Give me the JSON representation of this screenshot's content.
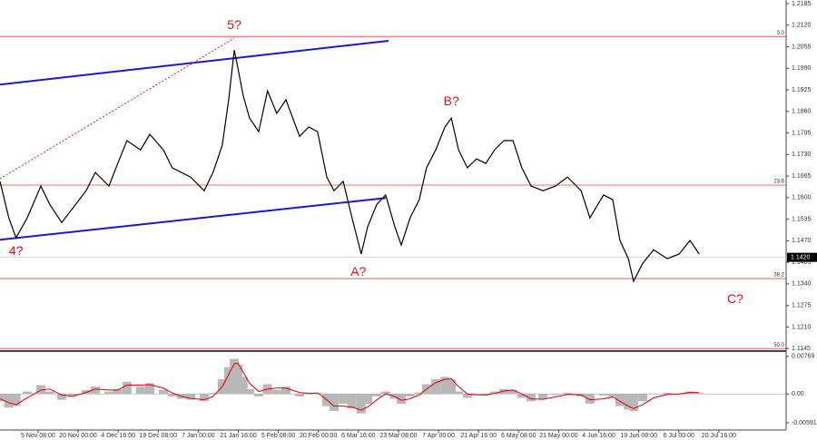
{
  "chart_data": [
    {
      "type": "price-line",
      "color": "#000000",
      "grid": false,
      "xlim": [
        0.05,
        19.68
      ],
      "ylim": [
        1.114,
        1.2196
      ],
      "xticks": [
        {
          "value": 1,
          "label": "5 Nov 08:00"
        },
        {
          "value": 2,
          "label": "20 Nov 00:00"
        },
        {
          "value": 3,
          "label": "4 Dec 16:00"
        },
        {
          "value": 4,
          "label": "19 Dec 08:00"
        },
        {
          "value": 5,
          "label": "7 Jan 00:00"
        },
        {
          "value": 6,
          "label": "21 Jan 16:00"
        },
        {
          "value": 7,
          "label": "5 Feb 08:00"
        },
        {
          "value": 8,
          "label": "20 Feb 00:00"
        },
        {
          "value": 9,
          "label": "6 Mar 16:00"
        },
        {
          "value": 10,
          "label": "23 Mar 08:00"
        },
        {
          "value": 11,
          "label": "7 Apr 00:00"
        },
        {
          "value": 12,
          "label": "21 Apr 16:00"
        },
        {
          "value": 13,
          "label": "6 May 08:00"
        },
        {
          "value": 14,
          "label": "21 May 00:00"
        },
        {
          "value": 15,
          "label": "4 Jun 16:00"
        },
        {
          "value": 16,
          "label": "19 Jun 08:00"
        },
        {
          "value": 17,
          "label": "6 Jul 00:00"
        },
        {
          "value": 18,
          "label": "20 Jul 16:00"
        }
      ],
      "yticks": [
        1.1145,
        {
          "value": 1.121,
          "label": "1.1210"
        },
        1.1275,
        {
          "value": 1.134,
          "label": "1.1340"
        },
        1.1405,
        {
          "value": 1.147,
          "label": "1.1470"
        },
        1.1535,
        {
          "value": 1.16,
          "label": "1.1600"
        },
        1.1665,
        {
          "value": 1.173,
          "label": "1.1730"
        },
        1.1795,
        {
          "value": 1.186,
          "label": "1.1860"
        },
        1.1925,
        {
          "value": 1.199,
          "label": "1.1990"
        },
        1.2055,
        {
          "value": 1.212,
          "label": "1.2120"
        },
        1.2185
      ],
      "x": [
        0.05,
        0.27,
        0.45,
        0.73,
        1.07,
        1.29,
        1.59,
        1.86,
        2.2,
        2.43,
        2.77,
        2.99,
        3.22,
        3.56,
        3.79,
        4.13,
        4.35,
        4.58,
        4.81,
        5.15,
        5.37,
        5.6,
        5.76,
        5.9,
        5.99,
        6.12,
        6.28,
        6.51,
        6.73,
        6.96,
        7.19,
        7.53,
        7.76,
        7.98,
        8.21,
        8.39,
        8.62,
        8.84,
        9.07,
        9.23,
        9.46,
        9.68,
        9.91,
        10.07,
        10.29,
        10.52,
        10.7,
        10.93,
        11.16,
        11.32,
        11.5,
        11.72,
        11.95,
        12.18,
        12.4,
        12.63,
        12.86,
        13.08,
        13.31,
        13.61,
        13.92,
        14.22,
        14.56,
        14.78,
        15.12,
        15.35,
        15.53,
        15.74,
        15.87,
        16.1,
        16.37,
        16.71,
        17.01,
        17.28,
        17.51
      ],
      "values": [
        1.1649,
        1.1539,
        1.1479,
        1.1539,
        1.1635,
        1.158,
        1.1525,
        1.1567,
        1.1621,
        1.1676,
        1.1635,
        1.1703,
        1.1772,
        1.1744,
        1.1791,
        1.1744,
        1.169,
        1.1676,
        1.1662,
        1.1621,
        1.1676,
        1.1758,
        1.1895,
        1.2045,
        1.1991,
        1.1909,
        1.184,
        1.1799,
        1.1922,
        1.1854,
        1.1895,
        1.1785,
        1.1813,
        1.1799,
        1.1662,
        1.1621,
        1.1649,
        1.1539,
        1.143,
        1.1512,
        1.158,
        1.1608,
        1.1512,
        1.1457,
        1.1539,
        1.1594,
        1.169,
        1.1744,
        1.1813,
        1.184,
        1.1744,
        1.169,
        1.1717,
        1.1703,
        1.1744,
        1.1772,
        1.1772,
        1.169,
        1.1635,
        1.1621,
        1.1635,
        1.1662,
        1.1621,
        1.1539,
        1.1608,
        1.1594,
        1.1471,
        1.1416,
        1.1348,
        1.1402,
        1.1443,
        1.1416,
        1.143,
        1.1471,
        1.143
      ],
      "levels": [
        {
          "value": 1.2086,
          "label": "0.0",
          "color": "#e04040"
        },
        {
          "value": 1.1638,
          "label": "23.6",
          "color": "#e04040"
        },
        {
          "value": 1.1356,
          "label": "38.2",
          "color": "#e04040"
        },
        {
          "value": 1.1145,
          "label": "50.0",
          "color": "#e04040"
        }
      ],
      "last_price": {
        "value": 1.142,
        "label": "1.1420"
      },
      "trendlines": [
        {
          "color": "#1a1acc",
          "style": "solid",
          "points": [
            [
              0.05,
              1.1941
            ],
            [
              9.75,
              1.2073
            ]
          ]
        },
        {
          "color": "#1a1acc",
          "style": "solid",
          "points": [
            [
              0.05,
              1.1473
            ],
            [
              9.68,
              1.1599
            ]
          ]
        },
        {
          "color": "#e02020",
          "style": "dotted",
          "points": [
            [
              0.05,
              1.1657
            ],
            [
              5.9,
              1.2081
            ]
          ]
        }
      ],
      "annotations": [
        {
          "text": "5?",
          "x": 5.9,
          "y": 1.2119
        },
        {
          "text": "4?",
          "x": 0.45,
          "y": 1.1438
        },
        {
          "text": "A?",
          "x": 9.0,
          "y": 1.1375
        },
        {
          "text": "B?",
          "x": 11.32,
          "y": 1.1889
        },
        {
          "text": "C?",
          "x": 18.41,
          "y": 1.1293
        }
      ],
      "annotation_color": "#e01010"
    },
    {
      "type": "oscillator",
      "xlim": [
        0.05,
        19.68
      ],
      "ylim": [
        -0.0074,
        0.0086
      ],
      "yticks": [
        0.00769,
        {
          "value": 0,
          "label": "0.00"
        },
        -0.00591
      ],
      "x": [
        0.05,
        0.27,
        0.45,
        0.73,
        1.07,
        1.29,
        1.59,
        1.86,
        2.2,
        2.43,
        2.77,
        2.99,
        3.22,
        3.56,
        3.79,
        4.13,
        4.35,
        4.58,
        4.81,
        5.15,
        5.37,
        5.6,
        5.76,
        5.9,
        5.99,
        6.12,
        6.28,
        6.51,
        6.73,
        6.96,
        7.19,
        7.53,
        7.76,
        7.98,
        8.21,
        8.39,
        8.62,
        8.84,
        9.07,
        9.23,
        9.46,
        9.68,
        9.91,
        10.07,
        10.29,
        10.52,
        10.7,
        10.93,
        11.16,
        11.32,
        11.5,
        11.72,
        11.95,
        12.18,
        12.4,
        12.63,
        12.86,
        13.08,
        13.31,
        13.61,
        13.92,
        14.22,
        14.56,
        14.78,
        15.12,
        15.35,
        15.53,
        15.74,
        15.87,
        16.1,
        16.37,
        16.71,
        17.01,
        17.28,
        17.51
      ],
      "series": [
        {
          "style": "histogram",
          "color": "#b8b8b8",
          "values": [
            -0.0015,
            -0.0028,
            -0.0025,
            0.0005,
            0.0018,
            0.0005,
            -0.0012,
            -0.0003,
            0.0008,
            0.0015,
            0.0005,
            0.001,
            0.0025,
            0.0015,
            0.0022,
            0.0008,
            -0.0005,
            -0.001,
            -0.0012,
            -0.0015,
            0.0002,
            0.003,
            0.0055,
            0.0072,
            0.006,
            0.0035,
            0.001,
            -0.0005,
            0.002,
            0.0008,
            0.0015,
            -0.0005,
            0.0003,
            0.0002,
            -0.0025,
            -0.0035,
            -0.002,
            -0.003,
            -0.004,
            -0.002,
            -0.0005,
            0.0005,
            -0.001,
            -0.002,
            -0.0005,
            0.0003,
            0.002,
            0.003,
            0.0035,
            0.003,
            0.0005,
            -0.0008,
            0,
            -0.0003,
            0.0005,
            0.001,
            0.0008,
            -0.0008,
            -0.0015,
            -0.001,
            -0.0002,
            0.0002,
            -0.0005,
            -0.002,
            -0.0003,
            -0.0005,
            -0.0025,
            -0.0032,
            -0.0035,
            -0.0015,
            0,
            0.0002,
            0,
            0.0005,
            0.0002
          ]
        },
        {
          "style": "line",
          "color": "#e00000",
          "values": [
            -0.001,
            -0.0018,
            -0.0022,
            -0.0008,
            0.0008,
            0.001,
            -0.0002,
            -0.0005,
            0.0003,
            0.001,
            0.0008,
            0.0008,
            0.0018,
            0.0018,
            0.0019,
            0.0012,
            0.0002,
            -0.0005,
            -0.0009,
            -0.0012,
            -0.0005,
            0.0015,
            0.004,
            0.0062,
            0.0063,
            0.0045,
            0.0022,
            0.0005,
            0.001,
            0.0012,
            0.0012,
            0.0003,
            0.0001,
            0.0002,
            -0.0012,
            -0.0025,
            -0.0025,
            -0.0027,
            -0.0033,
            -0.0027,
            -0.0012,
            0,
            -0.0005,
            -0.0013,
            -0.001,
            -0.0002,
            0.001,
            0.0023,
            0.003,
            0.0031,
            0.0015,
            0,
            -0.0002,
            -0.0002,
            0.0001,
            0.0006,
            0.0008,
            0,
            -0.001,
            -0.0011,
            -0.0006,
            -0.0001,
            -0.0002,
            -0.0012,
            -0.001,
            -0.0006,
            -0.0015,
            -0.0025,
            -0.003,
            -0.0022,
            -0.0008,
            -0.0001,
            0,
            0.0003,
            0.0003
          ]
        }
      ]
    }
  ]
}
